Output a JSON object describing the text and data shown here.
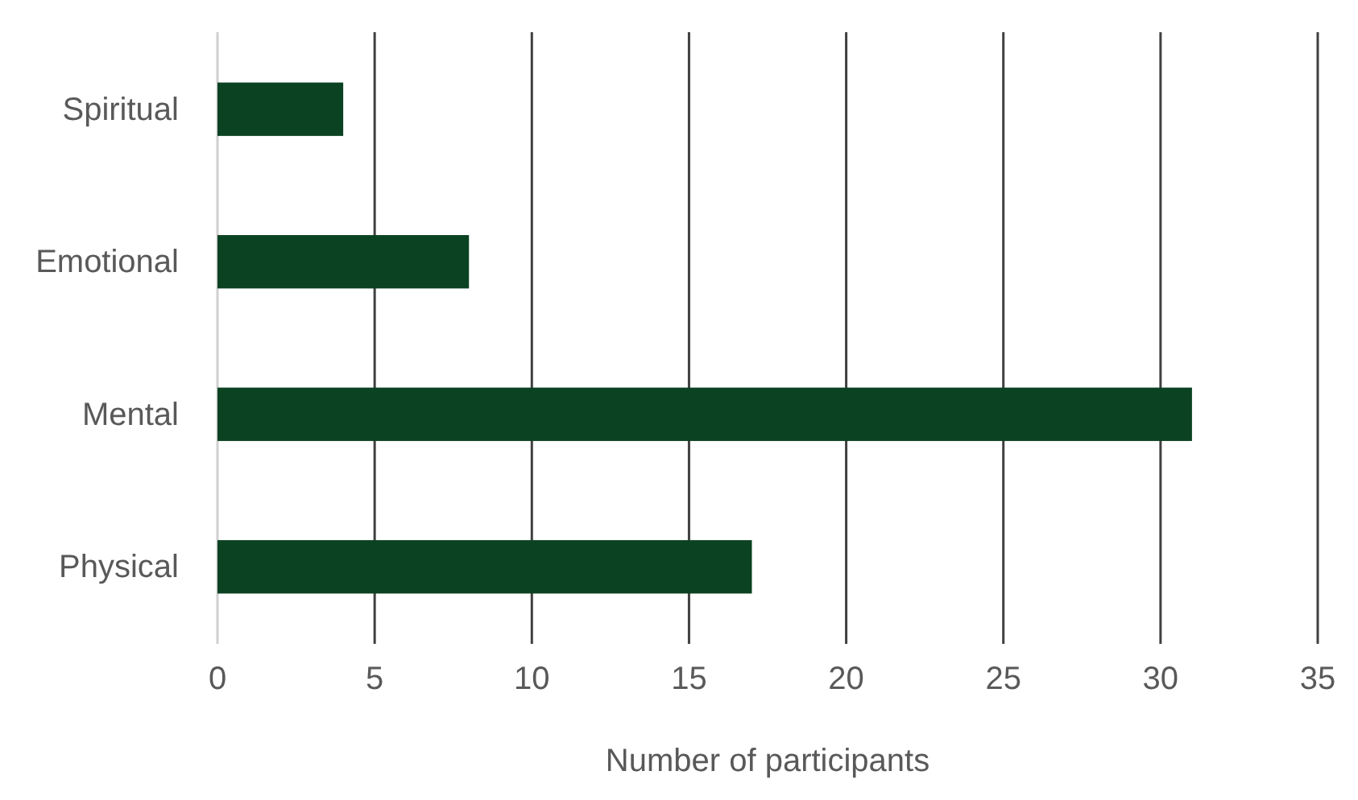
{
  "chart_data": {
    "type": "bar",
    "orientation": "horizontal",
    "categories": [
      "Spiritual",
      "Emotional",
      "Mental",
      "Physical"
    ],
    "values": [
      4,
      8,
      31,
      17
    ],
    "color": "#0b4222",
    "xlabel": "Number of participants",
    "xlim": [
      0,
      35
    ],
    "xticks": [
      0,
      5,
      10,
      15,
      20,
      25,
      30,
      35
    ],
    "grid": "x"
  }
}
